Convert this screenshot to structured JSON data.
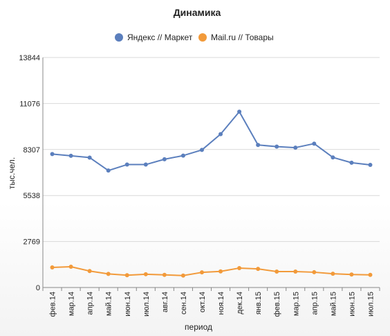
{
  "chart_data": {
    "type": "line",
    "title": "Динамика",
    "xlabel": "период",
    "ylabel": "тыс.чел.",
    "ylim": [
      0,
      13844
    ],
    "yticks": [
      0,
      2769,
      5538,
      8307,
      11076,
      13844
    ],
    "grid": true,
    "legend_position": "top-center",
    "categories": [
      "фев.14",
      "мар.14",
      "апр.14",
      "май.14",
      "июн.14",
      "июл.14",
      "авг.14",
      "сен.14",
      "окт.14",
      "ноя.14",
      "дек.14",
      "янв.15",
      "фев.15",
      "мар.15",
      "апр.15",
      "май.15",
      "июн.15",
      "июл.15"
    ],
    "series": [
      {
        "name": "Яндекс // Маркет",
        "color": "#5b7fbd",
        "values": [
          8030,
          7930,
          7820,
          7040,
          7400,
          7400,
          7720,
          7940,
          8280,
          9230,
          10580,
          8580,
          8480,
          8420,
          8660,
          7830,
          7510,
          7380
        ]
      },
      {
        "name": "Mail.ru // Товары",
        "color": "#f29a3a",
        "values": [
          1210,
          1250,
          990,
          820,
          740,
          800,
          760,
          720,
          910,
          970,
          1170,
          1120,
          960,
          960,
          920,
          830,
          780,
          760
        ]
      }
    ]
  }
}
